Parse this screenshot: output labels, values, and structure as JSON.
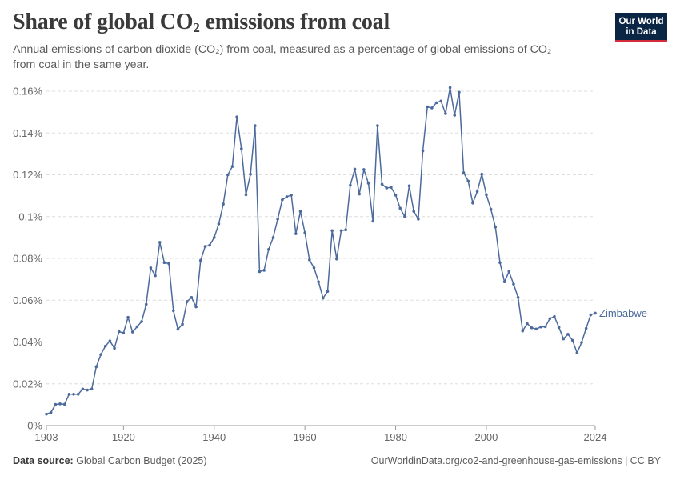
{
  "header": {
    "title_main": "Share of global CO",
    "title_sub": "2",
    "title_rest": " emissions from coal",
    "subtitle": "Annual emissions of carbon dioxide (CO₂) from coal, measured as a percentage of global emissions of CO₂ from coal in the same year."
  },
  "logo": {
    "line1": "Our World",
    "line2": "in Data",
    "bg_color": "#0b2545",
    "accent_color": "#d42b3a"
  },
  "footer": {
    "source_label": "Data source:",
    "source_value": "Global Carbon Budget (2025)",
    "url_license": "OurWorldinData.org/co2-and-greenhouse-gas-emissions | CC BY"
  },
  "chart_data": {
    "type": "line",
    "title": "Share of global CO₂ emissions from coal",
    "xlabel": "",
    "ylabel": "",
    "xlim": [
      1903,
      2024
    ],
    "ylim": [
      0,
      0.16
    ],
    "y_ticks": [
      0,
      0.02,
      0.04,
      0.06,
      0.08,
      0.1,
      0.12,
      0.14,
      0.16
    ],
    "y_tick_labels": [
      "0%",
      "0.02%",
      "0.04%",
      "0.06%",
      "0.08%",
      "0.1%",
      "0.12%",
      "0.14%",
      "0.16%"
    ],
    "x_ticks": [
      1903,
      1920,
      1940,
      1960,
      1980,
      2000,
      2024
    ],
    "x_tick_labels": [
      "1903",
      "1920",
      "1940",
      "1960",
      "1980",
      "2000",
      "2024"
    ],
    "grid": "horizontal dashed",
    "line_color": "#4c6a9c",
    "series": [
      {
        "name": "Zimbabwe",
        "x": [
          1903,
          1904,
          1905,
          1906,
          1907,
          1908,
          1909,
          1910,
          1911,
          1912,
          1913,
          1914,
          1915,
          1916,
          1917,
          1918,
          1919,
          1920,
          1921,
          1922,
          1923,
          1924,
          1925,
          1926,
          1927,
          1928,
          1929,
          1930,
          1931,
          1932,
          1933,
          1934,
          1935,
          1936,
          1937,
          1938,
          1939,
          1940,
          1941,
          1942,
          1943,
          1944,
          1945,
          1946,
          1947,
          1948,
          1949,
          1950,
          1951,
          1952,
          1953,
          1954,
          1955,
          1956,
          1957,
          1958,
          1959,
          1960,
          1961,
          1962,
          1963,
          1964,
          1965,
          1966,
          1967,
          1968,
          1969,
          1970,
          1971,
          1972,
          1973,
          1974,
          1975,
          1976,
          1977,
          1978,
          1979,
          1980,
          1981,
          1982,
          1983,
          1984,
          1985,
          1986,
          1987,
          1988,
          1989,
          1990,
          1991,
          1992,
          1993,
          1994,
          1995,
          1996,
          1997,
          1998,
          1999,
          2000,
          2001,
          2002,
          2003,
          2004,
          2005,
          2006,
          2007,
          2008,
          2009,
          2010,
          2011,
          2012,
          2013,
          2014,
          2015,
          2016,
          2017,
          2018,
          2019,
          2020,
          2021,
          2022,
          2023,
          2024
        ],
        "values": [
          0.0055,
          0.0063,
          0.0101,
          0.0104,
          0.0102,
          0.015,
          0.015,
          0.015,
          0.0175,
          0.017,
          0.0175,
          0.0282,
          0.034,
          0.038,
          0.0405,
          0.037,
          0.045,
          0.0443,
          0.0518,
          0.0448,
          0.0473,
          0.0498,
          0.058,
          0.0755,
          0.0717,
          0.0877,
          0.078,
          0.0775,
          0.055,
          0.0461,
          0.0485,
          0.0593,
          0.0613,
          0.0568,
          0.079,
          0.0857,
          0.0863,
          0.09,
          0.0965,
          0.106,
          0.12,
          0.124,
          0.1477,
          0.1325,
          0.1105,
          0.1203,
          0.1435,
          0.0737,
          0.0743,
          0.0843,
          0.09,
          0.0988,
          0.108,
          0.1095,
          0.1103,
          0.0918,
          0.1025,
          0.0923,
          0.0793,
          0.0755,
          0.0688,
          0.061,
          0.0642,
          0.0933,
          0.0797,
          0.0933,
          0.0937,
          0.115,
          0.1227,
          0.1108,
          0.1225,
          0.116,
          0.0978,
          0.1435,
          0.1155,
          0.1137,
          0.114,
          0.1103,
          0.104,
          0.1,
          0.1147,
          0.1025,
          0.0988,
          0.1315,
          0.1525,
          0.152,
          0.1545,
          0.1553,
          0.1493,
          0.1617,
          0.1485,
          0.1595,
          0.121,
          0.117,
          0.1065,
          0.112,
          0.1203,
          0.1105,
          0.1035,
          0.095,
          0.078,
          0.0688,
          0.0737,
          0.0677,
          0.0613,
          0.0453,
          0.0488,
          0.0468,
          0.0462,
          0.0472,
          0.0473,
          0.0512,
          0.0522,
          0.047,
          0.0415,
          0.0437,
          0.0408,
          0.0348,
          0.0398,
          0.0465,
          0.053,
          0.0538
        ]
      }
    ]
  }
}
